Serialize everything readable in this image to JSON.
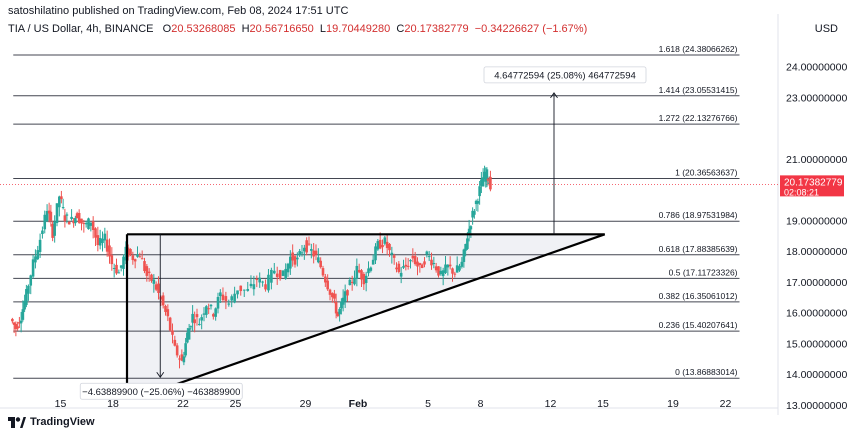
{
  "header": {
    "published": "satoshilatino published on TradingView.com, Feb 08, 2024 17:51 UTC",
    "symbol": "TIA / US Dollar, 4h, BINANCE",
    "o_label": "O",
    "o_value": "20.53268085",
    "h_label": "H",
    "h_value": "20.56716650",
    "l_label": "L",
    "l_value": "19.70449280",
    "c_label": "C",
    "c_value": "20.17382779",
    "change": "−0.34226627 (−1.67%)",
    "currency": "USD"
  },
  "logo": {
    "text": "TradingView"
  },
  "colors": {
    "up": "#26a69a",
    "down": "#ef5350",
    "price_badge": "#f23645",
    "fib_line": "#434651",
    "trend": "#000000"
  },
  "chart_data": {
    "type": "candlestick",
    "ylim": [
      12.9,
      25.0
    ],
    "y_ticks": [
      {
        "value": 24,
        "label": "24.00000000"
      },
      {
        "value": 23,
        "label": "23.00000000"
      },
      {
        "value": 21,
        "label": "21.00000000"
      },
      {
        "value": 19,
        "label": "19.00000000"
      },
      {
        "value": 18,
        "label": "18.00000000"
      },
      {
        "value": 17,
        "label": "17.00000000"
      },
      {
        "value": 16,
        "label": "16.00000000"
      },
      {
        "value": 15,
        "label": "15.00000000"
      },
      {
        "value": 14,
        "label": "14.00000000"
      },
      {
        "value": 13,
        "label": "13.00000000"
      }
    ],
    "x_ticks": [
      {
        "day": 15,
        "label": "15"
      },
      {
        "day": 18,
        "label": "18"
      },
      {
        "day": 22,
        "label": "22"
      },
      {
        "day": 25,
        "label": "25"
      },
      {
        "day": 29,
        "label": "29"
      },
      {
        "day": 32,
        "label": "Feb"
      },
      {
        "day": 36,
        "label": "5"
      },
      {
        "day": 39,
        "label": "8"
      },
      {
        "day": 43,
        "label": "12"
      },
      {
        "day": 46,
        "label": "15"
      },
      {
        "day": 50,
        "label": "19"
      },
      {
        "day": 53,
        "label": "22"
      }
    ],
    "x_start_day": 12.0,
    "x_end_day": 56.0,
    "last_price": {
      "value": 20.17382779,
      "label": "20.17382779",
      "countdown": "02:08:21"
    },
    "fib_levels": [
      {
        "value": 24.38066262,
        "label": "1.618 (24.38066262)"
      },
      {
        "value": 23.05531415,
        "label": "1.414 (23.05531415)"
      },
      {
        "value": 22.13276766,
        "label": "1.272 (22.13276766)"
      },
      {
        "value": 20.36563637,
        "label": "1 (20.36563637)"
      },
      {
        "value": 18.97531984,
        "label": "0.786 (18.97531984)"
      },
      {
        "value": 17.88385639,
        "label": "0.618 (17.88385639)"
      },
      {
        "value": 17.11723326,
        "label": "0.5 (17.11723326)"
      },
      {
        "value": 16.35061012,
        "label": "0.382 (16.35061012)"
      },
      {
        "value": 15.40207641,
        "label": "0.236 (15.40207641)"
      },
      {
        "value": 13.86883014,
        "label": "0 (13.86883014)"
      }
    ],
    "fib_start_day": 12.3,
    "fib_end_day": 53.8,
    "triangle": {
      "top": {
        "day": 18.8,
        "price": 18.55
      },
      "top_right": {
        "day": 46.1,
        "price": 18.55
      },
      "bottom": {
        "day": 18.8,
        "price": 13.55
      },
      "low_point": {
        "day": 21.0,
        "price": 13.55
      }
    },
    "measures": [
      {
        "day": 43.2,
        "from": 18.55,
        "to": 23.15,
        "label": "4.64772594 (25.08%) 464772594"
      },
      {
        "day": 20.7,
        "from": 18.55,
        "to": 13.9,
        "label": "−4.63889900 (−25.06%) −463889900"
      }
    ],
    "candles_path": [
      [
        12.2,
        15.8
      ],
      [
        12.5,
        15.5
      ],
      [
        12.8,
        15.9
      ],
      [
        13.1,
        16.6
      ],
      [
        13.5,
        17.6
      ],
      [
        13.9,
        18.4
      ],
      [
        14.3,
        19.4
      ],
      [
        14.6,
        18.6
      ],
      [
        15.0,
        19.8
      ],
      [
        15.3,
        19.1
      ],
      [
        15.7,
        19.0
      ],
      [
        16.0,
        19.2
      ],
      [
        16.4,
        18.8
      ],
      [
        16.8,
        19.0
      ],
      [
        17.2,
        18.2
      ],
      [
        17.6,
        18.4
      ],
      [
        18.0,
        17.6
      ],
      [
        18.4,
        17.3
      ],
      [
        18.8,
        18.0
      ],
      [
        19.2,
        17.8
      ],
      [
        19.6,
        17.9
      ],
      [
        20.0,
        17.2
      ],
      [
        20.4,
        17.0
      ],
      [
        20.8,
        16.4
      ],
      [
        21.2,
        15.8
      ],
      [
        21.6,
        14.8
      ],
      [
        22.0,
        14.4
      ],
      [
        22.3,
        15.3
      ],
      [
        22.6,
        15.9
      ],
      [
        23.0,
        15.7
      ],
      [
        23.4,
        16.3
      ],
      [
        23.8,
        16.0
      ],
      [
        24.2,
        16.6
      ],
      [
        24.7,
        16.3
      ],
      [
        25.2,
        16.8
      ],
      [
        25.8,
        16.7
      ],
      [
        26.3,
        17.1
      ],
      [
        26.8,
        16.9
      ],
      [
        27.3,
        17.4
      ],
      [
        27.8,
        17.2
      ],
      [
        28.2,
        17.8
      ],
      [
        28.6,
        17.7
      ],
      [
        29.0,
        18.2
      ],
      [
        29.4,
        18.0
      ],
      [
        29.8,
        17.7
      ],
      [
        30.2,
        17.1
      ],
      [
        30.6,
        16.5
      ],
      [
        30.9,
        15.9
      ],
      [
        31.2,
        16.4
      ],
      [
        31.6,
        16.9
      ],
      [
        32.0,
        17.4
      ],
      [
        32.4,
        17.1
      ],
      [
        32.8,
        17.6
      ],
      [
        33.2,
        18.2
      ],
      [
        33.6,
        18.3
      ],
      [
        34.0,
        17.8
      ],
      [
        34.4,
        17.3
      ],
      [
        34.8,
        17.5
      ],
      [
        35.2,
        17.8
      ],
      [
        35.6,
        17.4
      ],
      [
        36.0,
        17.9
      ],
      [
        36.4,
        17.6
      ],
      [
        36.8,
        17.2
      ],
      [
        37.2,
        17.5
      ],
      [
        37.6,
        17.3
      ],
      [
        38.0,
        17.6
      ],
      [
        38.3,
        18.5
      ],
      [
        38.6,
        19.2
      ],
      [
        38.9,
        19.8
      ],
      [
        39.2,
        20.4
      ],
      [
        39.4,
        20.5
      ],
      [
        39.6,
        20.17
      ]
    ]
  }
}
